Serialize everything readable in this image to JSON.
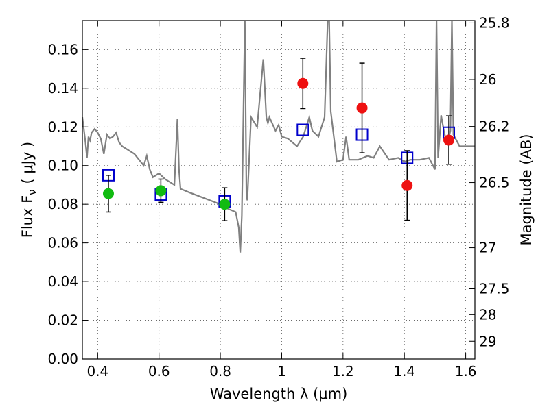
{
  "chart_data": {
    "type": "scatter",
    "xlabel": "Wavelength  λ (μm)",
    "ylabel": "Flux  F",
    "ylabel_sub": "ν",
    "ylabel_unit": "( μJy )",
    "y2label": "Magnitude (AB)",
    "xlim": [
      0.35,
      1.63
    ],
    "ylim": [
      0.0,
      0.175
    ],
    "grid": true,
    "x_ticks": [
      0.4,
      0.6,
      0.8,
      1.0,
      1.2,
      1.4,
      1.6
    ],
    "x_tick_labels": [
      "0.4",
      "0.6",
      "0.8",
      "1",
      "1.2",
      "1.4",
      "1.6"
    ],
    "y_ticks": [
      0.0,
      0.02,
      0.04,
      0.06,
      0.08,
      0.1,
      0.12,
      0.14,
      0.16
    ],
    "y_tick_labels": [
      "0.00",
      "0.02",
      "0.04",
      "0.06",
      "0.08",
      "0.10",
      "0.12",
      "0.14",
      "0.16"
    ],
    "y2_ticks": [
      {
        "mag": 25.8,
        "label": "25.8"
      },
      {
        "mag": 26.0,
        "label": "26"
      },
      {
        "mag": 26.2,
        "label": "26.2"
      },
      {
        "mag": 26.5,
        "label": "26.5"
      },
      {
        "mag": 27.0,
        "label": "27"
      },
      {
        "mag": 27.5,
        "label": "27.5"
      },
      {
        "mag": 28.0,
        "label": "28"
      },
      {
        "mag": 29.0,
        "label": "29"
      }
    ],
    "colors": {
      "green_points": "#11bb11",
      "red_points": "#ee1111",
      "model_squares": "#0000cc",
      "spectrum": "#808080",
      "grid": "#555555"
    },
    "series": [
      {
        "marker": "circle-green",
        "points": [
          {
            "x": 0.435,
            "y": 0.0855,
            "err": 0.0095
          },
          {
            "x": 0.606,
            "y": 0.087,
            "err": 0.006
          },
          {
            "x": 0.814,
            "y": 0.08,
            "err": 0.0085
          }
        ]
      },
      {
        "marker": "circle-red",
        "points": [
          {
            "x": 1.069,
            "y": 0.1425,
            "err": 0.013
          },
          {
            "x": 1.262,
            "y": 0.1298,
            "err": 0.0232
          },
          {
            "x": 1.409,
            "y": 0.0897,
            "err": 0.018
          },
          {
            "x": 1.545,
            "y": 0.1132,
            "err": 0.0125
          }
        ]
      },
      {
        "marker": "square-blue",
        "points": [
          {
            "x": 0.435,
            "y": 0.095
          },
          {
            "x": 0.606,
            "y": 0.085
          },
          {
            "x": 0.814,
            "y": 0.0815
          },
          {
            "x": 1.069,
            "y": 0.1185
          },
          {
            "x": 1.262,
            "y": 0.116
          },
          {
            "x": 1.409,
            "y": 0.104
          },
          {
            "x": 1.545,
            "y": 0.117
          }
        ]
      },
      {
        "marker": "line-gray",
        "x": [
          0.35,
          0.36,
          0.365,
          0.37,
          0.375,
          0.38,
          0.39,
          0.4,
          0.41,
          0.42,
          0.43,
          0.44,
          0.45,
          0.46,
          0.47,
          0.48,
          0.5,
          0.52,
          0.55,
          0.56,
          0.57,
          0.58,
          0.6,
          0.62,
          0.65,
          0.66,
          0.665,
          0.67,
          0.7,
          0.75,
          0.8,
          0.82,
          0.85,
          0.86,
          0.865,
          0.87,
          0.88,
          0.885,
          0.888,
          0.9,
          0.92,
          0.94,
          0.95,
          0.955,
          0.96,
          0.98,
          0.99,
          1.0,
          1.02,
          1.05,
          1.07,
          1.09,
          1.1,
          1.12,
          1.14,
          1.15,
          1.155,
          1.16,
          1.18,
          1.2,
          1.21,
          1.22,
          1.25,
          1.28,
          1.3,
          1.32,
          1.35,
          1.38,
          1.4,
          1.42,
          1.45,
          1.48,
          1.5,
          1.505,
          1.51,
          1.52,
          1.53,
          1.54,
          1.55,
          1.555,
          1.56,
          1.58,
          1.6,
          1.63
        ],
        "y": [
          0.125,
          0.112,
          0.104,
          0.115,
          0.113,
          0.117,
          0.119,
          0.117,
          0.114,
          0.106,
          0.116,
          0.114,
          0.115,
          0.117,
          0.112,
          0.11,
          0.108,
          0.106,
          0.1,
          0.105,
          0.098,
          0.094,
          0.096,
          0.093,
          0.09,
          0.124,
          0.098,
          0.088,
          0.086,
          0.083,
          0.08,
          0.078,
          0.076,
          0.068,
          0.055,
          0.074,
          0.175,
          0.085,
          0.082,
          0.125,
          0.12,
          0.155,
          0.125,
          0.122,
          0.125,
          0.118,
          0.121,
          0.115,
          0.114,
          0.11,
          0.115,
          0.125,
          0.118,
          0.115,
          0.125,
          0.175,
          0.175,
          0.128,
          0.102,
          0.103,
          0.115,
          0.103,
          0.103,
          0.105,
          0.104,
          0.11,
          0.103,
          0.104,
          0.102,
          0.103,
          0.103,
          0.104,
          0.098,
          0.175,
          0.104,
          0.126,
          0.117,
          0.111,
          0.118,
          0.175,
          0.116,
          0.11,
          0.11,
          0.11
        ]
      }
    ]
  }
}
